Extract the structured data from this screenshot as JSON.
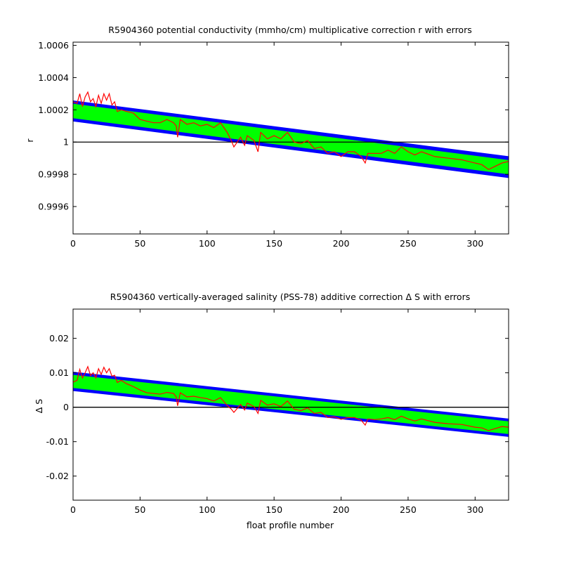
{
  "figure": {
    "background": "#ffffff"
  },
  "colors": {
    "band_outer": "#0000ff",
    "band_inner": "#00ff00",
    "series": "#ff0000",
    "reference_line": "#000000"
  },
  "chart_data": [
    {
      "type": "area",
      "title": "R5904360 potential conductivity (mmho/cm) multiplicative correction r with errors",
      "xlabel": "",
      "ylabel": "r",
      "xlim": [
        0,
        325
      ],
      "ylim": [
        0.99943,
        1.00062
      ],
      "xticks": [
        0,
        50,
        100,
        150,
        200,
        250,
        300
      ],
      "yticks": [
        0.9996,
        0.9998,
        1,
        1.0002,
        1.0004,
        1.0006
      ],
      "ytick_labels": [
        "0.9996",
        "0.9998",
        "1",
        "1.0002",
        "1.0004",
        "1.0006"
      ],
      "reference_line": 1,
      "series": [
        {
          "role": "outer error band",
          "color": "#0000ff",
          "x": [
            0,
            325
          ],
          "upper": [
            1.000258,
            0.999912
          ],
          "lower": [
            1.000128,
            0.999777
          ]
        },
        {
          "role": "inner error band",
          "color": "#00ff00",
          "x": [
            0,
            325
          ],
          "upper": [
            1.000238,
            0.999888
          ],
          "lower": [
            1.000148,
            0.9998
          ]
        },
        {
          "role": "correction",
          "color": "#ff0000",
          "x": [
            0,
            3,
            5,
            7,
            9,
            11,
            13,
            15,
            17,
            19,
            21,
            23,
            25,
            27,
            29,
            31,
            33,
            36,
            40,
            45,
            50,
            55,
            60,
            65,
            70,
            75,
            77,
            78,
            80,
            85,
            90,
            95,
            100,
            105,
            110,
            115,
            118,
            120,
            125,
            128,
            130,
            135,
            138,
            140,
            145,
            150,
            155,
            160,
            165,
            170,
            175,
            180,
            185,
            190,
            195,
            200,
            205,
            210,
            215,
            218,
            220,
            225,
            230,
            235,
            240,
            245,
            250,
            255,
            260,
            270,
            280,
            290,
            300,
            305,
            310,
            315,
            320,
            325
          ],
          "y": [
            1.00025,
            1.00024,
            1.0003,
            1.00022,
            1.00028,
            1.00031,
            1.00025,
            1.00027,
            1.00022,
            1.00029,
            1.00024,
            1.0003,
            1.00026,
            1.0003,
            1.00023,
            1.00025,
            1.00019,
            1.0002,
            1.00019,
            1.00018,
            1.00014,
            1.00013,
            1.00012,
            1.00012,
            1.00014,
            1.00012,
            1.0001,
            1.00003,
            1.00014,
            1.00011,
            1.00012,
            1.0001,
            1.00011,
            1.00009,
            1.00012,
            1.00006,
            1.00001,
            0.99997,
            1.00003,
            0.99998,
            1.00004,
            1.00001,
            0.99994,
            1.00006,
            1.00002,
            1.00004,
            1.00002,
            1.00006,
            1.0,
            0.99999,
            1.00001,
            0.99996,
            0.99997,
            0.99993,
            0.99994,
            0.99991,
            0.99994,
            0.99994,
            0.99991,
            0.99987,
            0.99993,
            0.99993,
            0.99993,
            0.99995,
            0.99993,
            0.99997,
            0.99994,
            0.99992,
            0.99994,
            0.99991,
            0.9999,
            0.99989,
            0.99987,
            0.99986,
            0.99983,
            0.99985,
            0.99987,
            0.99988
          ]
        }
      ]
    },
    {
      "type": "area",
      "title": "R5904360 vertically-averaged salinity (PSS-78) additive correction Δ S with errors",
      "xlabel": "float profile number",
      "ylabel": "Δ S",
      "xlim": [
        0,
        325
      ],
      "ylim": [
        -0.027,
        0.0285
      ],
      "xticks": [
        0,
        50,
        100,
        150,
        200,
        250,
        300
      ],
      "yticks": [
        -0.02,
        -0.01,
        0,
        0.01,
        0.02
      ],
      "ytick_labels": [
        "-0.02",
        "-0.01",
        "0",
        "0.01",
        "0.02"
      ],
      "reference_line": 0,
      "series": [
        {
          "role": "outer error band",
          "color": "#0000ff",
          "x": [
            0,
            325
          ],
          "upper": [
            0.0103,
            -0.0033
          ],
          "lower": [
            0.0047,
            -0.0086
          ]
        },
        {
          "role": "inner error band",
          "color": "#00ff00",
          "x": [
            0,
            325
          ],
          "upper": [
            0.0094,
            -0.0041
          ],
          "lower": [
            0.0056,
            -0.0078
          ]
        },
        {
          "role": "correction",
          "color": "#ff0000",
          "x": [
            0,
            3,
            5,
            7,
            9,
            11,
            13,
            15,
            17,
            19,
            21,
            23,
            25,
            27,
            29,
            31,
            33,
            36,
            40,
            45,
            50,
            55,
            60,
            65,
            70,
            75,
            77,
            78,
            80,
            85,
            90,
            95,
            100,
            105,
            110,
            115,
            118,
            120,
            125,
            128,
            130,
            135,
            138,
            140,
            145,
            150,
            155,
            160,
            165,
            170,
            175,
            180,
            185,
            190,
            195,
            200,
            205,
            210,
            215,
            218,
            220,
            225,
            230,
            235,
            240,
            245,
            250,
            255,
            260,
            270,
            280,
            290,
            300,
            305,
            310,
            315,
            320,
            325
          ],
          "y": [
            0.0073,
            0.0078,
            0.011,
            0.0085,
            0.01,
            0.0118,
            0.0092,
            0.01,
            0.0085,
            0.0112,
            0.0095,
            0.0116,
            0.01,
            0.0112,
            0.009,
            0.0093,
            0.0072,
            0.0078,
            0.0068,
            0.006,
            0.005,
            0.0042,
            0.004,
            0.0038,
            0.0043,
            0.004,
            0.003,
            0.0004,
            0.0042,
            0.003,
            0.0032,
            0.0028,
            0.0025,
            0.0018,
            0.0028,
            0.0005,
            -0.0005,
            -0.0015,
            0.0008,
            -0.0008,
            0.0012,
            0.0002,
            -0.0018,
            0.002,
            0.0006,
            0.001,
            0.0002,
            0.0018,
            -0.0006,
            -0.001,
            -0.0002,
            -0.0018,
            -0.0015,
            -0.003,
            -0.0028,
            -0.0035,
            -0.003,
            -0.003,
            -0.0038,
            -0.0052,
            -0.0034,
            -0.0036,
            -0.0034,
            -0.003,
            -0.0036,
            -0.0026,
            -0.0034,
            -0.004,
            -0.0034,
            -0.0044,
            -0.0048,
            -0.005,
            -0.0058,
            -0.006,
            -0.0068,
            -0.0062,
            -0.0056,
            -0.0058
          ]
        }
      ]
    }
  ]
}
